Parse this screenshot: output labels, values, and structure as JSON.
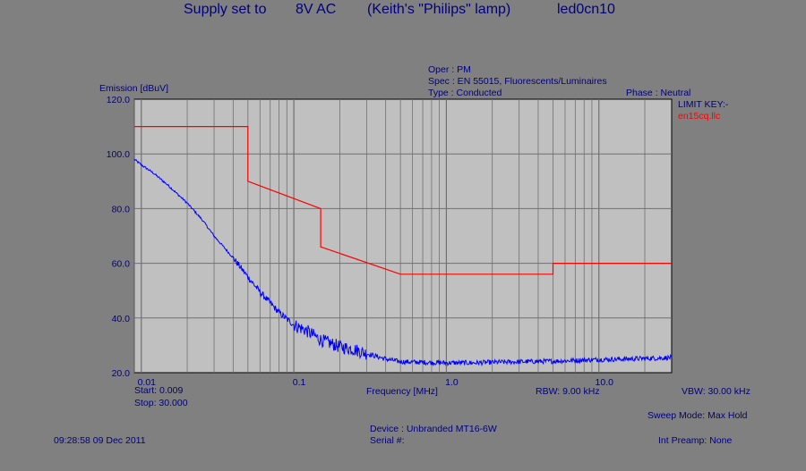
{
  "header": {
    "supply_label": "Supply set to",
    "voltage": "8V AC",
    "lamp": "(Keith's \"Philips\" lamp)",
    "test_id": "led0cn10"
  },
  "info": {
    "oper": "Oper : PM",
    "spec": "Spec : EN 55015, Fluorescents/Luminaires",
    "type": "Type : Conducted",
    "phase": "Phase : Neutral",
    "limit_key_title": "LIMIT KEY:-",
    "limit_key_file": "en15cq.llc"
  },
  "footer": {
    "start": "Start: 0.009",
    "stop": "Stop: 30.000",
    "rbw": "RBW: 9.00 kHz",
    "vbw": "VBW: 30.00 kHz",
    "sweep_mode": "Sweep Mode: Max Hold",
    "device": "Device : Unbranded MT16-6W",
    "serial": "Serial #:",
    "int_preamp": "Int Preamp: None",
    "timestamp": "09:28:58 09 Dec 2011"
  },
  "chart_data": {
    "type": "line",
    "xlabel": "Frequency [MHz]",
    "ylabel": "Emission [dBuV]",
    "xscale": "log",
    "xlim": [
      0.009,
      30
    ],
    "ylim": [
      20,
      120
    ],
    "grid": true,
    "y_ticks": [
      "120.0",
      "100.0",
      "80.0",
      "60.0",
      "40.0",
      "20.0"
    ],
    "y_tick_values": [
      120,
      100,
      80,
      60,
      40,
      20
    ],
    "x_ticks": [
      "0.01",
      "0.1",
      "1.0",
      "10.0"
    ],
    "x_tick_values": [
      0.01,
      0.1,
      1,
      10
    ],
    "series": [
      {
        "name": "en15cq.llc",
        "color": "#ff0000",
        "x": [
          0.009,
          0.05,
          0.05,
          0.15,
          0.15,
          0.5,
          5,
          5,
          30
        ],
        "y": [
          110,
          110,
          90,
          80,
          66,
          56,
          56,
          60,
          60
        ]
      },
      {
        "color": "#0000ff",
        "x": [
          0.009,
          0.01,
          0.012,
          0.015,
          0.02,
          0.025,
          0.03,
          0.04,
          0.05,
          0.06,
          0.07,
          0.08,
          0.1,
          0.12,
          0.15,
          0.2,
          0.25,
          0.3,
          0.4,
          0.5,
          0.7,
          1,
          1.5,
          2,
          3,
          5,
          7,
          10,
          15,
          20,
          30
        ],
        "y": [
          98,
          96,
          93,
          88.5,
          82,
          76,
          70,
          62,
          55,
          49.5,
          45.5,
          42,
          37.5,
          35.5,
          32,
          29.5,
          28.5,
          27,
          25,
          24,
          23.8,
          23.6,
          23.6,
          23.8,
          24,
          24.2,
          24.5,
          24.8,
          25,
          25.2,
          25.5
        ]
      }
    ]
  }
}
